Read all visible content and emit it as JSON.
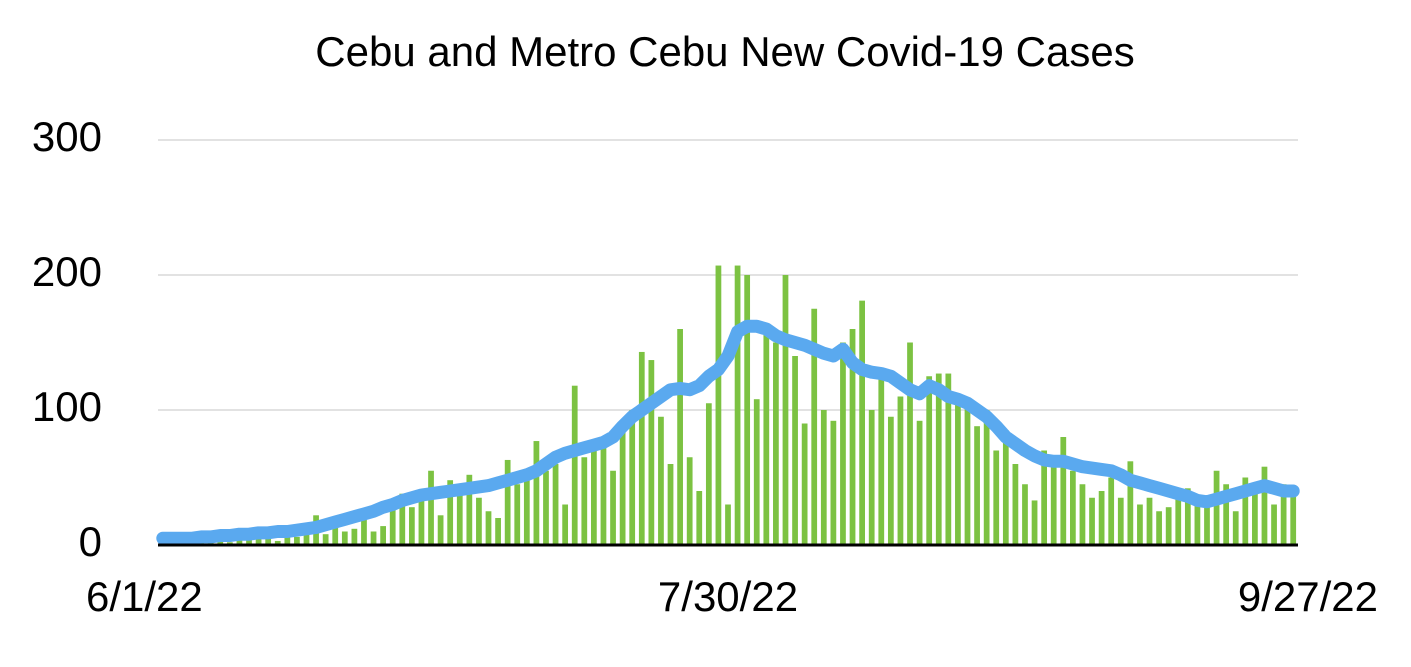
{
  "chart_data": {
    "type": "bar",
    "title": "Cebu and Metro Cebu New Covid-19 Cases",
    "categories": [
      "6/1/22",
      null,
      null,
      null,
      null,
      null,
      null,
      null,
      null,
      null,
      null,
      null,
      null,
      null,
      null,
      null,
      null,
      null,
      null,
      null,
      null,
      null,
      null,
      null,
      null,
      null,
      null,
      null,
      null,
      null,
      null,
      null,
      null,
      null,
      null,
      null,
      null,
      null,
      null,
      null,
      null,
      null,
      null,
      null,
      null,
      null,
      null,
      null,
      null,
      null,
      null,
      null,
      null,
      null,
      null,
      null,
      null,
      null,
      null,
      "7/30/22",
      null,
      null,
      null,
      null,
      null,
      null,
      null,
      null,
      null,
      null,
      null,
      null,
      null,
      null,
      null,
      null,
      null,
      null,
      null,
      null,
      null,
      null,
      null,
      null,
      null,
      null,
      null,
      null,
      null,
      null,
      null,
      null,
      null,
      null,
      null,
      null,
      null,
      null,
      null,
      null,
      null,
      null,
      null,
      null,
      null,
      null,
      null,
      null,
      null,
      null,
      null,
      null,
      null,
      null,
      null,
      null,
      null,
      null,
      "9/27/22"
    ],
    "series": [
      {
        "type": "bar",
        "color": "#7cc242",
        "values": [
          3,
          2,
          4,
          1,
          5,
          3,
          6,
          2,
          4,
          7,
          5,
          8,
          3,
          9,
          6,
          12,
          22,
          8,
          14,
          10,
          12,
          25,
          10,
          14,
          30,
          38,
          28,
          35,
          55,
          22,
          48,
          40,
          52,
          35,
          25,
          20,
          63,
          45,
          50,
          77,
          55,
          60,
          30,
          118,
          65,
          70,
          78,
          55,
          90,
          100,
          143,
          137,
          95,
          60,
          160,
          65,
          40,
          105,
          207,
          30,
          207,
          200,
          108,
          160,
          150,
          200,
          140,
          90,
          175,
          100,
          92,
          150,
          160,
          181,
          100,
          125,
          95,
          110,
          150,
          92,
          125,
          127,
          127,
          110,
          105,
          88,
          100,
          70,
          85,
          60,
          45,
          33,
          70,
          65,
          80,
          55,
          45,
          35,
          40,
          50,
          35,
          62,
          30,
          35,
          25,
          28,
          40,
          42,
          35,
          30,
          55,
          45,
          25,
          50,
          40,
          58,
          30,
          45,
          38
        ]
      },
      {
        "type": "line",
        "color": "#5aa9ef",
        "values": [
          5,
          5,
          5,
          5,
          6,
          6,
          7,
          7,
          8,
          8,
          9,
          9,
          10,
          10,
          11,
          12,
          13,
          15,
          17,
          19,
          21,
          23,
          25,
          28,
          30,
          33,
          35,
          37,
          38,
          39,
          40,
          41,
          42,
          43,
          44,
          46,
          48,
          50,
          52,
          55,
          60,
          65,
          68,
          70,
          72,
          74,
          76,
          80,
          88,
          95,
          100,
          105,
          110,
          115,
          116,
          115,
          118,
          125,
          130,
          140,
          158,
          162,
          162,
          160,
          155,
          152,
          150,
          148,
          145,
          142,
          140,
          145,
          135,
          130,
          128,
          127,
          125,
          120,
          115,
          112,
          118,
          115,
          110,
          108,
          105,
          100,
          95,
          88,
          80,
          75,
          70,
          66,
          63,
          62,
          62,
          60,
          58,
          57,
          56,
          55,
          52,
          48,
          46,
          44,
          42,
          40,
          38,
          36,
          33,
          32,
          34,
          36,
          38,
          40,
          42,
          44,
          42,
          40,
          40
        ]
      }
    ],
    "ylim": [
      0,
      300
    ],
    "yticks": [
      0,
      100,
      200,
      300
    ],
    "grid": true
  }
}
